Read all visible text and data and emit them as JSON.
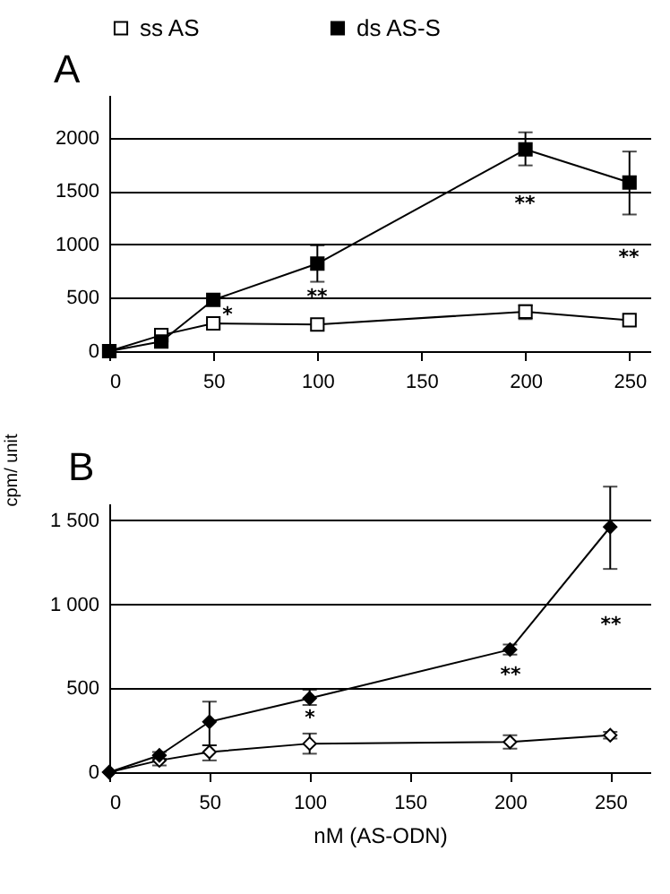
{
  "chart_data": [
    {
      "type": "line",
      "title": "A",
      "ylabel": "cpm/ unit",
      "marker": "square",
      "legend": "top",
      "grid": "y",
      "xlim": [
        0,
        260
      ],
      "xticks": [
        0,
        50,
        100,
        150,
        200,
        250
      ],
      "ylim": [
        0,
        2400
      ],
      "yticks": [
        0,
        500,
        1000,
        1500,
        2000
      ],
      "x": [
        0,
        25,
        50,
        100,
        200,
        250
      ],
      "series": [
        {
          "name": "ss AS",
          "color": "#ffffff",
          "values": [
            0,
            150,
            260,
            250,
            370,
            290
          ],
          "errors": [
            null,
            null,
            null,
            null,
            [
              300,
              430
            ],
            null
          ]
        },
        {
          "name": "ds AS-S",
          "color": "#000000",
          "values": [
            0,
            90,
            480,
            820,
            1890,
            1580
          ],
          "errors": [
            null,
            null,
            null,
            [
              650,
              990
            ],
            [
              1740,
              2050
            ],
            [
              1280,
              1870
            ]
          ]
        }
      ],
      "annotations": [
        "*",
        "**",
        "**",
        "**"
      ]
    },
    {
      "type": "line",
      "title": "B",
      "xlabel": "nM (AS-ODN)",
      "marker": "diamond",
      "grid": "y",
      "xlim": [
        0,
        270
      ],
      "xticks": [
        0,
        50,
        100,
        150,
        200,
        250
      ],
      "ylim": [
        0,
        1600
      ],
      "yticks": [
        0,
        500,
        {
          "value": 1000,
          "label": "1 000"
        },
        {
          "value": 1500,
          "label": "1 500"
        }
      ],
      "x": [
        0,
        25,
        50,
        100,
        200,
        250
      ],
      "series": [
        {
          "color": "#ffffff",
          "values": [
            0,
            70,
            120,
            170,
            180,
            220
          ],
          "errors": [
            null,
            [
              40,
              100
            ],
            [
              70,
              160
            ],
            [
              110,
              230
            ],
            [
              140,
              220
            ],
            [
              200,
              240
            ]
          ]
        },
        {
          "color": "#000000",
          "values": [
            0,
            100,
            300,
            440,
            730,
            1460
          ],
          "errors": [
            null,
            [
              80,
              120
            ],
            [
              160,
              420
            ],
            [
              400,
              490
            ],
            [
              700,
              760
            ],
            [
              1210,
              1700
            ]
          ]
        }
      ],
      "annotations": [
        "*",
        "**",
        "**"
      ]
    }
  ]
}
